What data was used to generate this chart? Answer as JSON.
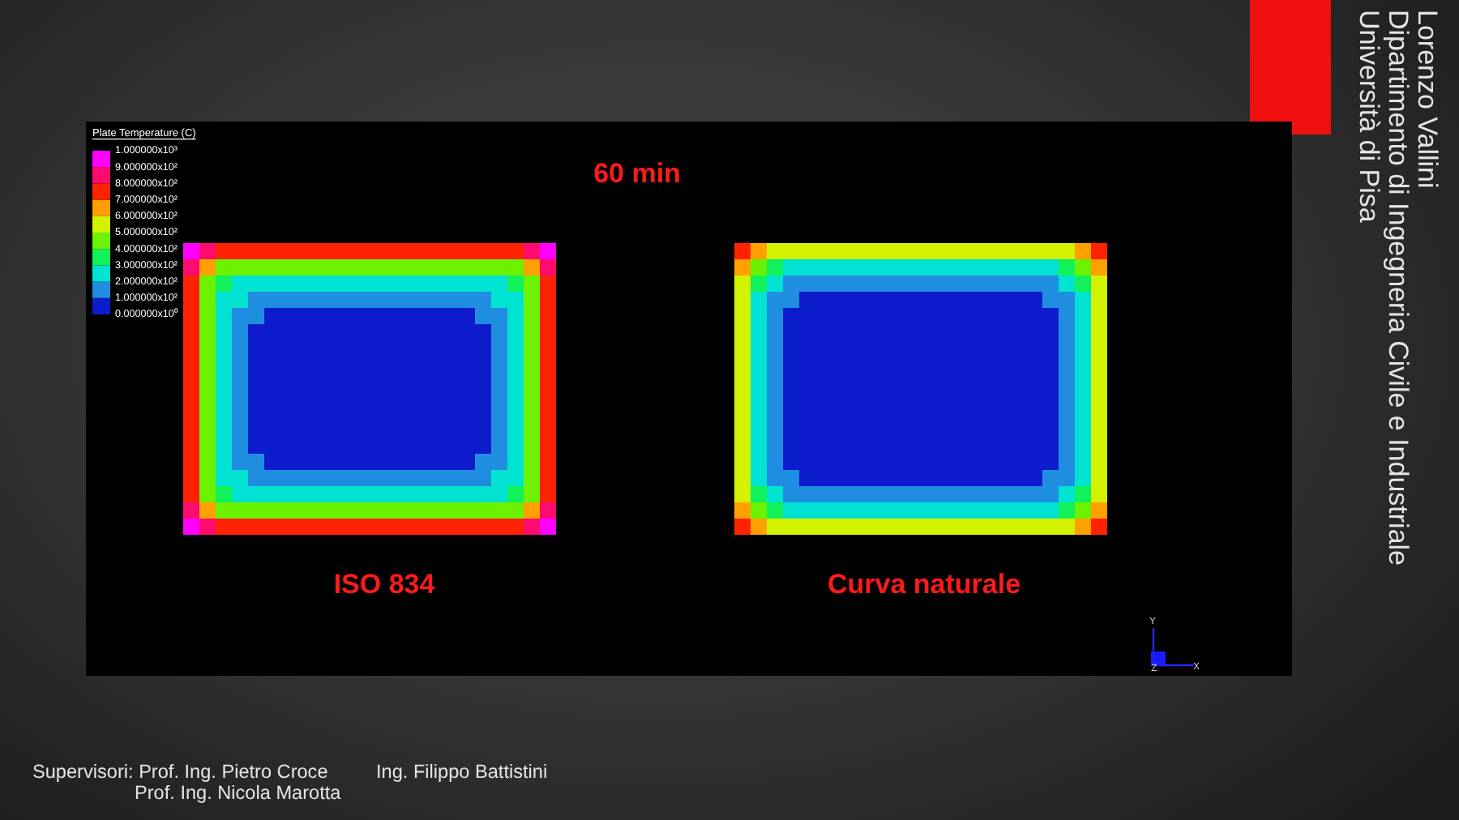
{
  "chart_data": [
    {
      "type": "heatmap",
      "title": "60 min",
      "clabel": "Plate Temperature (C)",
      "categories": [
        null,
        null,
        null,
        null,
        null,
        null,
        null,
        null,
        null,
        null,
        null,
        null,
        null,
        null,
        null,
        null,
        null,
        null,
        null,
        null,
        null,
        null,
        null,
        null,
        null,
        null,
        null,
        null,
        null,
        null,
        null,
        null,
        null,
        null,
        null,
        null,
        null,
        null,
        null,
        null,
        null,
        null,
        null,
        null,
        null,
        null,
        null,
        null,
        null,
        null,
        null,
        null,
        null,
        null,
        null,
        null,
        null
      ],
      "y_categories": [
        null,
        null,
        null,
        null,
        null,
        null,
        null,
        null,
        null,
        null,
        null,
        null,
        null,
        null,
        null,
        null,
        null,
        null
      ],
      "cells": [
        [
          950,
          850,
          750,
          720,
          720,
          720,
          720,
          720,
          720,
          720,
          720,
          720,
          720,
          720,
          720,
          720,
          720,
          720,
          720,
          720,
          750,
          850,
          950,
          null,
          null,
          null,
          null,
          null,
          null,
          null,
          null,
          null,
          null,
          null,
          750,
          650,
          580,
          550,
          550,
          550,
          550,
          550,
          550,
          550,
          550,
          550,
          550,
          550,
          550,
          550,
          550,
          550,
          550,
          550,
          580,
          650,
          750
        ],
        [
          850,
          600,
          480,
          450,
          450,
          450,
          450,
          450,
          450,
          450,
          450,
          450,
          450,
          450,
          450,
          450,
          450,
          450,
          450,
          450,
          480,
          600,
          850,
          null,
          null,
          null,
          null,
          null,
          null,
          null,
          null,
          null,
          null,
          null,
          650,
          420,
          330,
          270,
          270,
          270,
          270,
          270,
          270,
          270,
          270,
          270,
          270,
          270,
          270,
          270,
          270,
          270,
          270,
          270,
          330,
          420,
          650
        ],
        [
          750,
          480,
          350,
          280,
          270,
          270,
          270,
          270,
          270,
          270,
          270,
          270,
          270,
          270,
          270,
          270,
          270,
          270,
          270,
          280,
          350,
          480,
          750,
          null,
          null,
          null,
          null,
          null,
          null,
          null,
          null,
          null,
          null,
          null,
          580,
          330,
          250,
          180,
          150,
          150,
          150,
          150,
          150,
          150,
          150,
          150,
          150,
          150,
          150,
          150,
          150,
          150,
          150,
          180,
          250,
          330,
          580
        ],
        [
          720,
          450,
          280,
          220,
          150,
          150,
          150,
          150,
          150,
          150,
          150,
          150,
          150,
          150,
          150,
          150,
          150,
          150,
          150,
          220,
          280,
          450,
          720,
          null,
          null,
          null,
          null,
          null,
          null,
          null,
          null,
          null,
          null,
          null,
          550,
          270,
          180,
          150,
          50,
          50,
          50,
          50,
          50,
          50,
          50,
          50,
          50,
          50,
          50,
          50,
          50,
          50,
          50,
          150,
          180,
          270,
          550
        ],
        [
          720,
          450,
          270,
          150,
          150,
          50,
          50,
          50,
          50,
          50,
          50,
          50,
          50,
          50,
          50,
          50,
          50,
          50,
          150,
          150,
          270,
          450,
          720,
          null,
          null,
          null,
          null,
          null,
          null,
          null,
          null,
          null,
          null,
          null,
          550,
          270,
          150,
          50,
          50,
          50,
          50,
          50,
          50,
          50,
          50,
          50,
          50,
          50,
          50,
          50,
          50,
          50,
          50,
          50,
          150,
          270,
          550
        ],
        [
          720,
          450,
          270,
          150,
          50,
          50,
          50,
          50,
          50,
          50,
          50,
          50,
          50,
          50,
          50,
          50,
          50,
          50,
          50,
          150,
          270,
          450,
          720,
          null,
          null,
          null,
          null,
          null,
          null,
          null,
          null,
          null,
          null,
          null,
          550,
          270,
          150,
          50,
          50,
          50,
          50,
          50,
          50,
          50,
          50,
          50,
          50,
          50,
          50,
          50,
          50,
          50,
          50,
          50,
          150,
          270,
          550
        ],
        [
          720,
          450,
          270,
          150,
          50,
          50,
          50,
          50,
          50,
          50,
          50,
          50,
          50,
          50,
          50,
          50,
          50,
          50,
          50,
          150,
          270,
          450,
          720,
          null,
          null,
          null,
          null,
          null,
          null,
          null,
          null,
          null,
          null,
          null,
          550,
          270,
          150,
          50,
          50,
          50,
          50,
          50,
          50,
          50,
          50,
          50,
          50,
          50,
          50,
          50,
          50,
          50,
          50,
          50,
          150,
          270,
          550
        ],
        [
          720,
          450,
          270,
          150,
          50,
          50,
          50,
          50,
          50,
          50,
          50,
          50,
          50,
          50,
          50,
          50,
          50,
          50,
          50,
          150,
          270,
          450,
          720,
          null,
          null,
          null,
          null,
          null,
          null,
          null,
          null,
          null,
          null,
          null,
          550,
          270,
          150,
          50,
          50,
          50,
          50,
          50,
          50,
          50,
          50,
          50,
          50,
          50,
          50,
          50,
          50,
          50,
          50,
          50,
          150,
          270,
          550
        ],
        [
          720,
          450,
          270,
          150,
          50,
          50,
          50,
          50,
          50,
          50,
          50,
          50,
          50,
          50,
          50,
          50,
          50,
          50,
          50,
          150,
          270,
          450,
          720,
          null,
          null,
          null,
          null,
          null,
          null,
          null,
          null,
          null,
          null,
          null,
          550,
          270,
          150,
          50,
          50,
          50,
          50,
          50,
          50,
          50,
          50,
          50,
          50,
          50,
          50,
          50,
          50,
          50,
          50,
          50,
          150,
          270,
          550
        ],
        [
          720,
          450,
          270,
          150,
          50,
          50,
          50,
          50,
          50,
          50,
          50,
          50,
          50,
          50,
          50,
          50,
          50,
          50,
          50,
          150,
          270,
          450,
          720,
          null,
          null,
          null,
          null,
          null,
          null,
          null,
          null,
          null,
          null,
          null,
          550,
          270,
          150,
          50,
          50,
          50,
          50,
          50,
          50,
          50,
          50,
          50,
          50,
          50,
          50,
          50,
          50,
          50,
          50,
          50,
          150,
          270,
          550
        ],
        [
          720,
          450,
          270,
          150,
          50,
          50,
          50,
          50,
          50,
          50,
          50,
          50,
          50,
          50,
          50,
          50,
          50,
          50,
          50,
          150,
          270,
          450,
          720,
          null,
          null,
          null,
          null,
          null,
          null,
          null,
          null,
          null,
          null,
          null,
          550,
          270,
          150,
          50,
          50,
          50,
          50,
          50,
          50,
          50,
          50,
          50,
          50,
          50,
          50,
          50,
          50,
          50,
          50,
          50,
          150,
          270,
          550
        ],
        [
          720,
          450,
          270,
          150,
          50,
          50,
          50,
          50,
          50,
          50,
          50,
          50,
          50,
          50,
          50,
          50,
          50,
          50,
          50,
          150,
          270,
          450,
          720,
          null,
          null,
          null,
          null,
          null,
          null,
          null,
          null,
          null,
          null,
          null,
          550,
          270,
          150,
          50,
          50,
          50,
          50,
          50,
          50,
          50,
          50,
          50,
          50,
          50,
          50,
          50,
          50,
          50,
          50,
          50,
          150,
          270,
          550
        ],
        [
          720,
          450,
          270,
          150,
          50,
          50,
          50,
          50,
          50,
          50,
          50,
          50,
          50,
          50,
          50,
          50,
          50,
          50,
          50,
          150,
          270,
          450,
          720,
          null,
          null,
          null,
          null,
          null,
          null,
          null,
          null,
          null,
          null,
          null,
          550,
          270,
          150,
          50,
          50,
          50,
          50,
          50,
          50,
          50,
          50,
          50,
          50,
          50,
          50,
          50,
          50,
          50,
          50,
          50,
          150,
          270,
          550
        ],
        [
          720,
          450,
          270,
          150,
          150,
          50,
          50,
          50,
          50,
          50,
          50,
          50,
          50,
          50,
          50,
          50,
          50,
          50,
          150,
          150,
          270,
          450,
          720,
          null,
          null,
          null,
          null,
          null,
          null,
          null,
          null,
          null,
          null,
          null,
          550,
          270,
          150,
          50,
          50,
          50,
          50,
          50,
          50,
          50,
          50,
          50,
          50,
          50,
          50,
          50,
          50,
          50,
          50,
          50,
          150,
          270,
          550
        ],
        [
          720,
          450,
          280,
          220,
          150,
          150,
          150,
          150,
          150,
          150,
          150,
          150,
          150,
          150,
          150,
          150,
          150,
          150,
          150,
          220,
          280,
          450,
          720,
          null,
          null,
          null,
          null,
          null,
          null,
          null,
          null,
          null,
          null,
          null,
          550,
          270,
          180,
          150,
          50,
          50,
          50,
          50,
          50,
          50,
          50,
          50,
          50,
          50,
          50,
          50,
          50,
          50,
          50,
          150,
          180,
          270,
          550
        ],
        [
          750,
          480,
          350,
          280,
          270,
          270,
          270,
          270,
          270,
          270,
          270,
          270,
          270,
          270,
          270,
          270,
          270,
          270,
          270,
          280,
          350,
          480,
          750,
          null,
          null,
          null,
          null,
          null,
          null,
          null,
          null,
          null,
          null,
          null,
          580,
          330,
          250,
          180,
          150,
          150,
          150,
          150,
          150,
          150,
          150,
          150,
          150,
          150,
          150,
          150,
          150,
          150,
          150,
          180,
          250,
          330,
          580
        ],
        [
          850,
          600,
          480,
          450,
          450,
          450,
          450,
          450,
          450,
          450,
          450,
          450,
          450,
          450,
          450,
          450,
          450,
          450,
          450,
          450,
          480,
          600,
          850,
          null,
          null,
          null,
          null,
          null,
          null,
          null,
          null,
          null,
          null,
          null,
          650,
          420,
          330,
          270,
          270,
          270,
          270,
          270,
          270,
          270,
          270,
          270,
          270,
          270,
          270,
          270,
          270,
          270,
          270,
          270,
          330,
          420,
          650
        ],
        [
          950,
          850,
          750,
          720,
          720,
          720,
          720,
          720,
          720,
          720,
          720,
          720,
          720,
          720,
          720,
          720,
          720,
          720,
          720,
          720,
          750,
          850,
          950,
          null,
          null,
          null,
          null,
          null,
          null,
          null,
          null,
          null,
          null,
          null,
          750,
          650,
          580,
          550,
          550,
          550,
          550,
          550,
          550,
          550,
          550,
          550,
          550,
          550,
          550,
          550,
          550,
          550,
          550,
          550,
          580,
          650,
          750
        ]
      ],
      "clim": [
        0,
        1000
      ],
      "cticks": [
        {
          "value": 0,
          "label": "0.000000x10⁰"
        },
        {
          "value": 100,
          "label": "1.000000x10²"
        },
        {
          "value": 200,
          "label": "2.000000x10²"
        },
        {
          "value": 300,
          "label": "3.000000x10²"
        },
        {
          "value": 400,
          "label": "4.000000x10²"
        },
        {
          "value": 500,
          "label": "5.000000x10²"
        },
        {
          "value": 600,
          "label": "6.000000x10²"
        },
        {
          "value": 700,
          "label": "7.000000x10²"
        },
        {
          "value": 800,
          "label": "8.000000x10²"
        },
        {
          "value": 900,
          "label": "9.000000x10²"
        },
        {
          "value": 1000,
          "label": "1.000000x10³"
        }
      ],
      "annotations": [
        "ISO 834",
        "Curva naturale",
        "Y",
        "Z",
        "X"
      ]
    },
    {
      "type": "other",
      "annotations": [
        "Lorenzo Vallini",
        "Dipartimento di Ingegneria Civile e Industriale",
        "Università di Pisa",
        "Supervisori: Prof. Ing. Pietro Croce",
        "Ing. Filippo Battistini",
        "Prof. Ing. Nicola Marotta"
      ]
    }
  ]
}
